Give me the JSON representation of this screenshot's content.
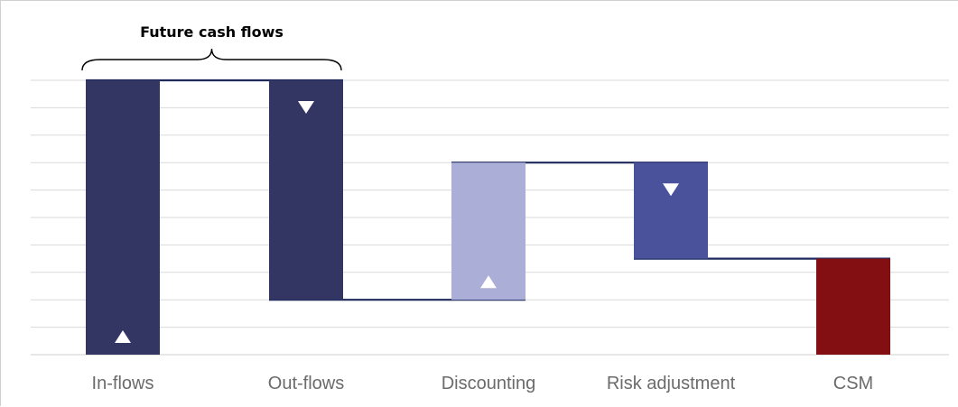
{
  "chart_data": {
    "type": "waterfall",
    "title": "",
    "xlabel": "",
    "ylabel": "",
    "ylim": [
      0,
      10
    ],
    "grid": true,
    "categories": [
      "In-flows",
      "Out-flows",
      "Discounting",
      "Risk adjustment",
      "CSM"
    ],
    "bars": [
      {
        "category": "In-flows",
        "start": 0,
        "end": 10,
        "direction": "up"
      },
      {
        "category": "Out-flows",
        "start": 10,
        "end": 2,
        "direction": "down"
      },
      {
        "category": "Discounting",
        "start": 2,
        "end": 7,
        "direction": "up"
      },
      {
        "category": "Risk adjustment",
        "start": 7,
        "end": 3.5,
        "direction": "down"
      },
      {
        "category": "CSM",
        "start": 0,
        "end": 3.5,
        "direction": "total"
      }
    ],
    "bracket": {
      "label": "Future cash flows",
      "spans": [
        "In-flows",
        "Out-flows"
      ]
    }
  },
  "colors": {
    "in_flows": "#333562",
    "out_flows": "#333562",
    "discounting": "#abaed6",
    "risk_adjustment": "#4a529c",
    "csm": "#830f12",
    "connector": "#1f2a5c",
    "grid": "#d9d9d9",
    "marker": "#ffffff"
  }
}
